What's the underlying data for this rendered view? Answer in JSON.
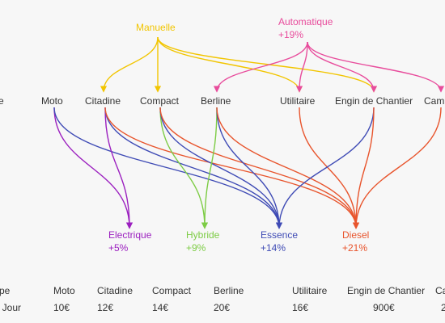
{
  "transmissions": [
    {
      "key": "manuelle",
      "label": "Manuelle",
      "note": "",
      "color": "#f2c500"
    },
    {
      "key": "automatique",
      "label": "Automatique",
      "note": "+19%",
      "color": "#e84c9c"
    }
  ],
  "categories": [
    {
      "key": "type",
      "label": "e"
    },
    {
      "key": "moto",
      "label": "Moto"
    },
    {
      "key": "citadine",
      "label": "Citadine"
    },
    {
      "key": "compact",
      "label": "Compact"
    },
    {
      "key": "berline",
      "label": "Berline"
    },
    {
      "key": "utilitaire",
      "label": "Utilitaire"
    },
    {
      "key": "engin",
      "label": "Engin de Chantier"
    },
    {
      "key": "camion",
      "label": "Cam"
    }
  ],
  "fuels": [
    {
      "key": "electrique",
      "label": "Electrique",
      "note": "+5%",
      "color": "#9b1fbf"
    },
    {
      "key": "hybride",
      "label": "Hybride",
      "note": "+9%",
      "color": "#7dcc45"
    },
    {
      "key": "essence",
      "label": "Essence",
      "note": "+14%",
      "color": "#3f4bb5"
    },
    {
      "key": "diesel",
      "label": "Diesel",
      "note": "+21%",
      "color": "#e8542c"
    }
  ],
  "price_table": {
    "header": [
      "pe",
      "Moto",
      "Citadine",
      "Compact",
      "Berline",
      "Utilitaire",
      "Engin de Chantier",
      "Ca"
    ],
    "values": [
      "/ Jour",
      "10€",
      "12€",
      "14€",
      "20€",
      "16€",
      "900€",
      "2"
    ]
  },
  "links": {
    "manuelle": [
      "citadine",
      "compact",
      "utilitaire",
      "engin"
    ],
    "automatique": [
      "berline",
      "utilitaire",
      "engin",
      "camion"
    ],
    "moto": [
      [
        "electrique",
        "#9b1fbf"
      ],
      [
        "essence",
        "#3f4bb5"
      ]
    ],
    "citadine": [
      [
        "electrique",
        "#9b1fbf"
      ],
      [
        "essence",
        "#3f4bb5"
      ],
      [
        "diesel",
        "#e8542c"
      ]
    ],
    "compact": [
      [
        "hybride",
        "#7dcc45"
      ],
      [
        "essence",
        "#3f4bb5"
      ],
      [
        "diesel",
        "#e8542c"
      ]
    ],
    "berline": [
      [
        "hybride",
        "#7dcc45"
      ],
      [
        "essence",
        "#3f4bb5"
      ],
      [
        "diesel",
        "#e8542c"
      ]
    ],
    "utilitaire": [
      [
        "diesel",
        "#e8542c"
      ]
    ],
    "engin": [
      [
        "essence",
        "#3f4bb5"
      ],
      [
        "diesel",
        "#e8542c"
      ]
    ],
    "camion": [
      [
        "diesel",
        "#e8542c"
      ]
    ]
  }
}
